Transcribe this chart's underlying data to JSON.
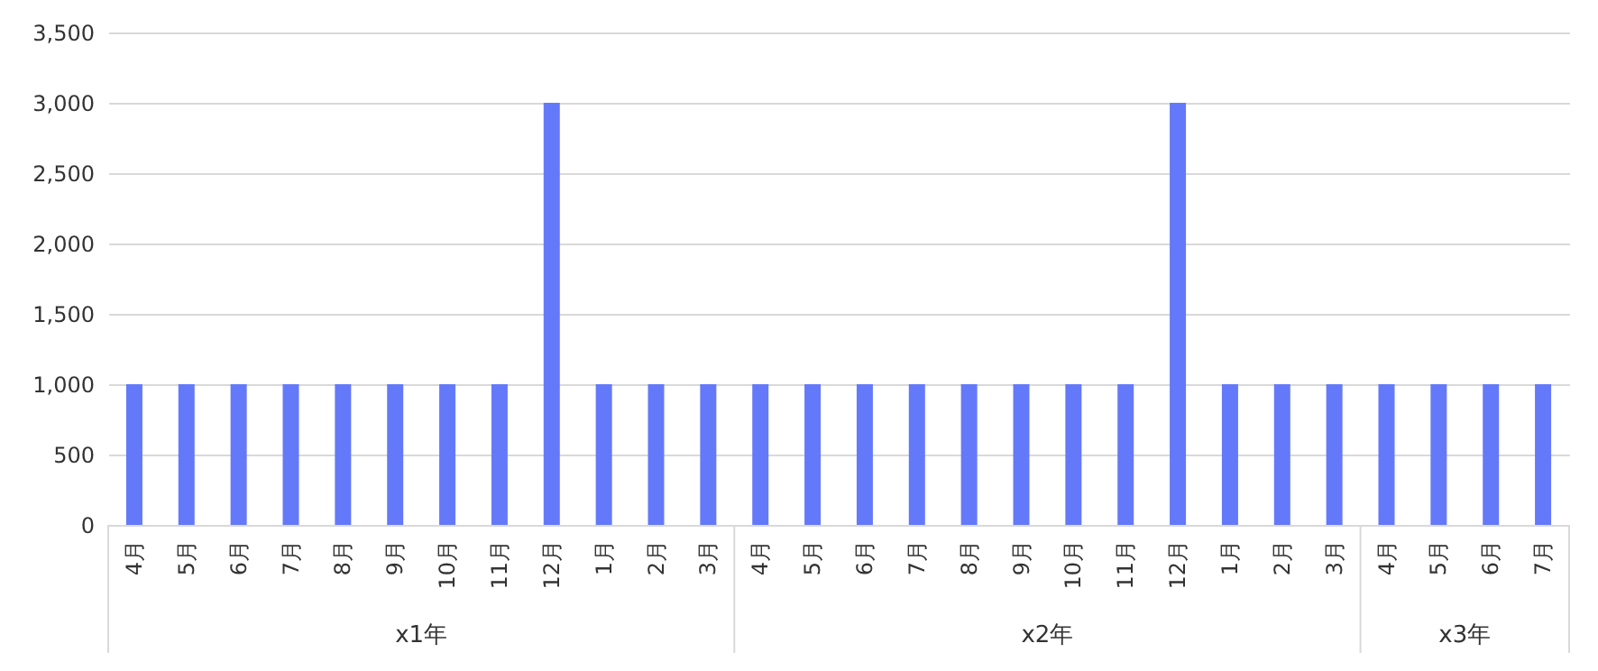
{
  "chart_data": {
    "type": "bar",
    "categories": [
      "4月",
      "5月",
      "6月",
      "7月",
      "8月",
      "9月",
      "10月",
      "11月",
      "12月",
      "1月",
      "2月",
      "3月",
      "4月",
      "5月",
      "6月",
      "7月",
      "8月",
      "9月",
      "10月",
      "11月",
      "12月",
      "1月",
      "2月",
      "3月",
      "4月",
      "5月",
      "6月",
      "7月"
    ],
    "series": [
      {
        "color": "#6479f9",
        "values": [
          1000,
          1000,
          1000,
          1000,
          1000,
          1000,
          1000,
          1000,
          3000,
          1000,
          1000,
          1000,
          1000,
          1000,
          1000,
          1000,
          1000,
          1000,
          1000,
          1000,
          3000,
          1000,
          1000,
          1000,
          1000,
          1000,
          1000,
          1000
        ]
      }
    ],
    "ylim": [
      0,
      3500
    ],
    "yticks": [
      0,
      500,
      {
        "value": 1000,
        "label": "1,000"
      },
      {
        "value": 1500,
        "label": "1,500"
      },
      {
        "value": 2000,
        "label": "2,000"
      },
      {
        "value": 2500,
        "label": "2,500"
      },
      {
        "value": 3000,
        "label": "3,000"
      },
      {
        "value": 3500,
        "label": "3,500"
      }
    ],
    "grid": "y",
    "annotations": [
      "x1年",
      "x2年",
      "x3年"
    ]
  }
}
